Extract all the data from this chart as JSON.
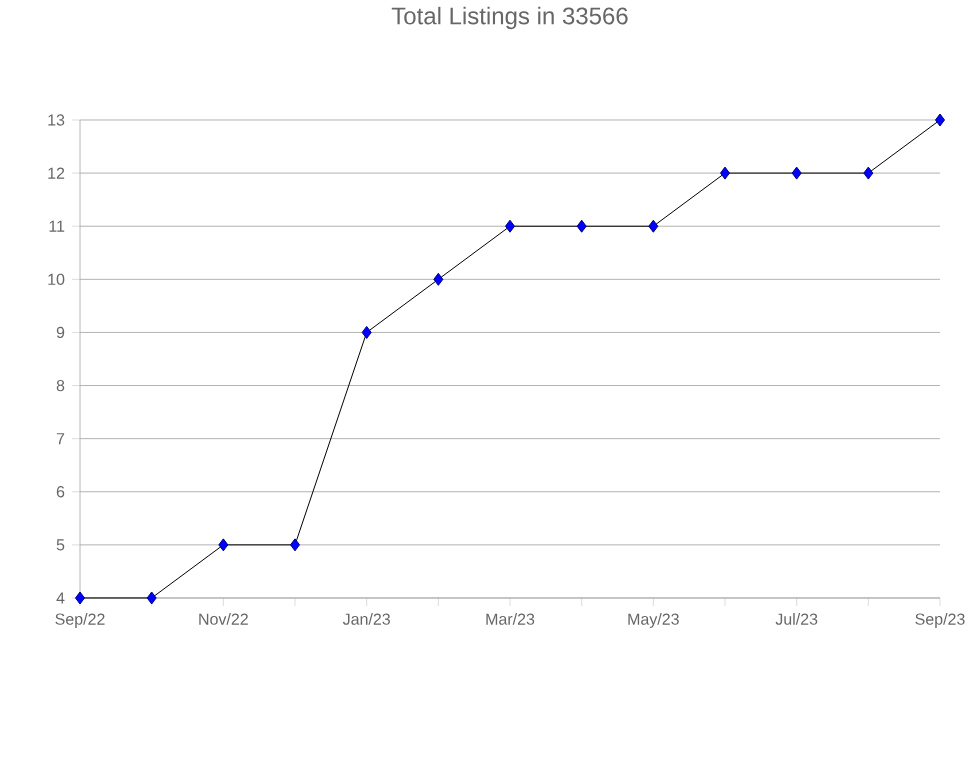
{
  "chart_data": {
    "type": "line",
    "title": "Total Listings in 33566",
    "categories": [
      "Sep/22",
      null,
      "Nov/22",
      null,
      "Jan/23",
      null,
      "Mar/23",
      null,
      "May/23",
      null,
      "Jul/23",
      null,
      "Sep/23"
    ],
    "series": [
      {
        "color": "#0000ff",
        "values": [
          4,
          4,
          5,
          5,
          9,
          10,
          11,
          11,
          11,
          12,
          12,
          12,
          13
        ]
      }
    ],
    "ylim": [
      4,
      13
    ],
    "yticks": [
      4,
      5,
      6,
      7,
      8,
      9,
      10,
      11,
      12,
      13
    ],
    "grid": "y",
    "marker": "diamond",
    "line_style": "solid"
  }
}
